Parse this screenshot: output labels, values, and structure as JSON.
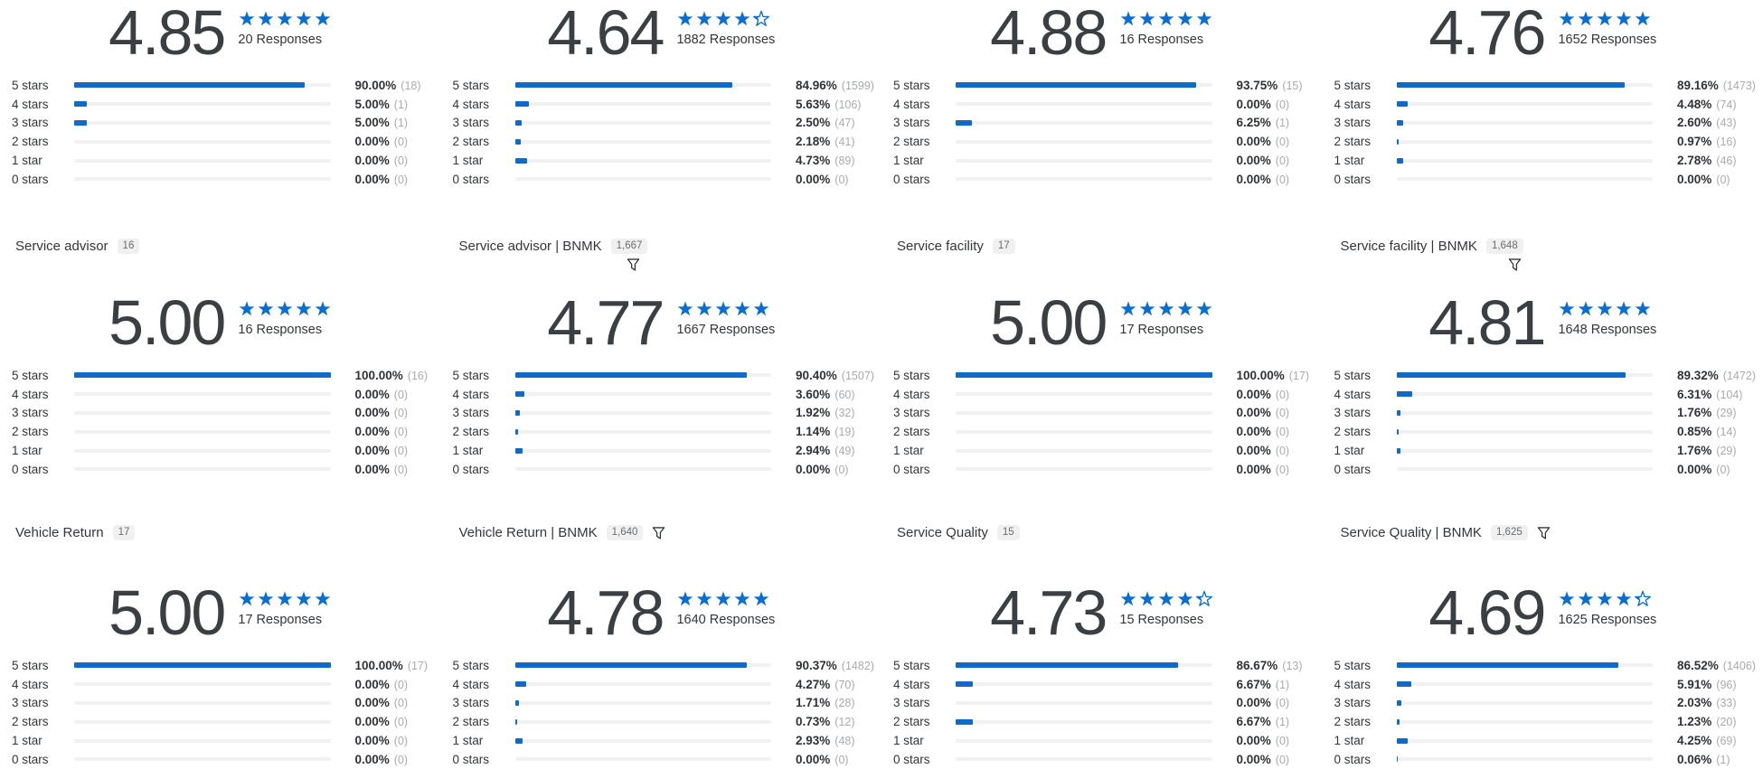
{
  "colors": {
    "accent": "#1169c8",
    "star": "#0a6ed1",
    "track": "#f1f1f3",
    "text": "#32363a",
    "muted": "#a8abae",
    "badge_bg": "#f0f0f0",
    "badge_text": "#6a6d70"
  },
  "star_row_labels": [
    "5 stars",
    "4 stars",
    "3 stars",
    "2 stars",
    "1 star",
    "0 stars"
  ],
  "sections": [
    {
      "titles": null,
      "widgets": [
        {
          "score": "4.85",
          "stars": [
            1,
            1,
            1,
            1,
            1
          ],
          "responses": "20 Responses",
          "breakdown": [
            {
              "percent": 90.0,
              "percent_label": "90.00%",
              "count_label": "(18)"
            },
            {
              "percent": 5.0,
              "percent_label": "5.00%",
              "count_label": "(1)"
            },
            {
              "percent": 5.0,
              "percent_label": "5.00%",
              "count_label": "(1)"
            },
            {
              "percent": 0.0,
              "percent_label": "0.00%",
              "count_label": "(0)"
            },
            {
              "percent": 0.0,
              "percent_label": "0.00%",
              "count_label": "(0)"
            },
            {
              "percent": 0.0,
              "percent_label": "0.00%",
              "count_label": "(0)"
            }
          ]
        },
        {
          "score": "4.64",
          "stars": [
            1,
            1,
            1,
            1,
            0.3
          ],
          "responses": "1882 Responses",
          "breakdown": [
            {
              "percent": 84.96,
              "percent_label": "84.96%",
              "count_label": "(1599)"
            },
            {
              "percent": 5.63,
              "percent_label": "5.63%",
              "count_label": "(106)"
            },
            {
              "percent": 2.5,
              "percent_label": "2.50%",
              "count_label": "(47)"
            },
            {
              "percent": 2.18,
              "percent_label": "2.18%",
              "count_label": "(41)"
            },
            {
              "percent": 4.73,
              "percent_label": "4.73%",
              "count_label": "(89)"
            },
            {
              "percent": 0.0,
              "percent_label": "0.00%",
              "count_label": "(0)"
            }
          ]
        },
        {
          "score": "4.88",
          "stars": [
            1,
            1,
            1,
            1,
            1
          ],
          "responses": "16 Responses",
          "breakdown": [
            {
              "percent": 93.75,
              "percent_label": "93.75%",
              "count_label": "(15)"
            },
            {
              "percent": 0.0,
              "percent_label": "0.00%",
              "count_label": "(0)"
            },
            {
              "percent": 6.25,
              "percent_label": "6.25%",
              "count_label": "(1)"
            },
            {
              "percent": 0.0,
              "percent_label": "0.00%",
              "count_label": "(0)"
            },
            {
              "percent": 0.0,
              "percent_label": "0.00%",
              "count_label": "(0)"
            },
            {
              "percent": 0.0,
              "percent_label": "0.00%",
              "count_label": "(0)"
            }
          ]
        },
        {
          "score": "4.76",
          "stars": [
            1,
            1,
            1,
            1,
            1
          ],
          "responses": "1652 Responses",
          "breakdown": [
            {
              "percent": 89.16,
              "percent_label": "89.16%",
              "count_label": "(1473)"
            },
            {
              "percent": 4.48,
              "percent_label": "4.48%",
              "count_label": "(74)"
            },
            {
              "percent": 2.6,
              "percent_label": "2.60%",
              "count_label": "(43)"
            },
            {
              "percent": 0.97,
              "percent_label": "0.97%",
              "count_label": "(16)"
            },
            {
              "percent": 2.78,
              "percent_label": "2.78%",
              "count_label": "(46)"
            },
            {
              "percent": 0.0,
              "percent_label": "0.00%",
              "count_label": "(0)"
            }
          ]
        }
      ]
    },
    {
      "titles": [
        {
          "label": "Service advisor",
          "badge": "16",
          "filter": "none"
        },
        {
          "label": "Service advisor | BNMK",
          "badge": "1,667",
          "filter": "below"
        },
        {
          "label": "Service facility",
          "badge": "17",
          "filter": "none"
        },
        {
          "label": "Service facility | BNMK",
          "badge": "1,648",
          "filter": "below"
        }
      ],
      "widgets": [
        {
          "score": "5.00",
          "stars": [
            1,
            1,
            1,
            1,
            1
          ],
          "responses": "16 Responses",
          "breakdown": [
            {
              "percent": 100.0,
              "percent_label": "100.00%",
              "count_label": "(16)"
            },
            {
              "percent": 0.0,
              "percent_label": "0.00%",
              "count_label": "(0)"
            },
            {
              "percent": 0.0,
              "percent_label": "0.00%",
              "count_label": "(0)"
            },
            {
              "percent": 0.0,
              "percent_label": "0.00%",
              "count_label": "(0)"
            },
            {
              "percent": 0.0,
              "percent_label": "0.00%",
              "count_label": "(0)"
            },
            {
              "percent": 0.0,
              "percent_label": "0.00%",
              "count_label": "(0)"
            }
          ]
        },
        {
          "score": "4.77",
          "stars": [
            1,
            1,
            1,
            1,
            1
          ],
          "responses": "1667 Responses",
          "breakdown": [
            {
              "percent": 90.4,
              "percent_label": "90.40%",
              "count_label": "(1507)"
            },
            {
              "percent": 3.6,
              "percent_label": "3.60%",
              "count_label": "(60)"
            },
            {
              "percent": 1.92,
              "percent_label": "1.92%",
              "count_label": "(32)"
            },
            {
              "percent": 1.14,
              "percent_label": "1.14%",
              "count_label": "(19)"
            },
            {
              "percent": 2.94,
              "percent_label": "2.94%",
              "count_label": "(49)"
            },
            {
              "percent": 0.0,
              "percent_label": "0.00%",
              "count_label": "(0)"
            }
          ]
        },
        {
          "score": "5.00",
          "stars": [
            1,
            1,
            1,
            1,
            1
          ],
          "responses": "17 Responses",
          "breakdown": [
            {
              "percent": 100.0,
              "percent_label": "100.00%",
              "count_label": "(17)"
            },
            {
              "percent": 0.0,
              "percent_label": "0.00%",
              "count_label": "(0)"
            },
            {
              "percent": 0.0,
              "percent_label": "0.00%",
              "count_label": "(0)"
            },
            {
              "percent": 0.0,
              "percent_label": "0.00%",
              "count_label": "(0)"
            },
            {
              "percent": 0.0,
              "percent_label": "0.00%",
              "count_label": "(0)"
            },
            {
              "percent": 0.0,
              "percent_label": "0.00%",
              "count_label": "(0)"
            }
          ]
        },
        {
          "score": "4.81",
          "stars": [
            1,
            1,
            1,
            1,
            1
          ],
          "responses": "1648 Responses",
          "breakdown": [
            {
              "percent": 89.32,
              "percent_label": "89.32%",
              "count_label": "(1472)"
            },
            {
              "percent": 6.31,
              "percent_label": "6.31%",
              "count_label": "(104)"
            },
            {
              "percent": 1.76,
              "percent_label": "1.76%",
              "count_label": "(29)"
            },
            {
              "percent": 0.85,
              "percent_label": "0.85%",
              "count_label": "(14)"
            },
            {
              "percent": 1.76,
              "percent_label": "1.76%",
              "count_label": "(29)"
            },
            {
              "percent": 0.0,
              "percent_label": "0.00%",
              "count_label": "(0)"
            }
          ]
        }
      ]
    },
    {
      "titles": [
        {
          "label": "Vehicle Return",
          "badge": "17",
          "filter": "none"
        },
        {
          "label": "Vehicle Return | BNMK",
          "badge": "1,640",
          "filter": "inline"
        },
        {
          "label": "Service Quality",
          "badge": "15",
          "filter": "none"
        },
        {
          "label": "Service Quality | BNMK",
          "badge": "1,625",
          "filter": "inline"
        }
      ],
      "widgets": [
        {
          "score": "5.00",
          "stars": [
            1,
            1,
            1,
            1,
            1
          ],
          "responses": "17 Responses",
          "breakdown": [
            {
              "percent": 100.0,
              "percent_label": "100.00%",
              "count_label": "(17)"
            },
            {
              "percent": 0.0,
              "percent_label": "0.00%",
              "count_label": "(0)"
            },
            {
              "percent": 0.0,
              "percent_label": "0.00%",
              "count_label": "(0)"
            },
            {
              "percent": 0.0,
              "percent_label": "0.00%",
              "count_label": "(0)"
            },
            {
              "percent": 0.0,
              "percent_label": "0.00%",
              "count_label": "(0)"
            },
            {
              "percent": 0.0,
              "percent_label": "0.00%",
              "count_label": "(0)"
            }
          ]
        },
        {
          "score": "4.78",
          "stars": [
            1,
            1,
            1,
            1,
            1
          ],
          "responses": "1640 Responses",
          "breakdown": [
            {
              "percent": 90.37,
              "percent_label": "90.37%",
              "count_label": "(1482)"
            },
            {
              "percent": 4.27,
              "percent_label": "4.27%",
              "count_label": "(70)"
            },
            {
              "percent": 1.71,
              "percent_label": "1.71%",
              "count_label": "(28)"
            },
            {
              "percent": 0.73,
              "percent_label": "0.73%",
              "count_label": "(12)"
            },
            {
              "percent": 2.93,
              "percent_label": "2.93%",
              "count_label": "(48)"
            },
            {
              "percent": 0.0,
              "percent_label": "0.00%",
              "count_label": "(0)"
            }
          ]
        },
        {
          "score": "4.73",
          "stars": [
            1,
            1,
            1,
            1,
            0.3
          ],
          "responses": "15 Responses",
          "breakdown": [
            {
              "percent": 86.67,
              "percent_label": "86.67%",
              "count_label": "(13)"
            },
            {
              "percent": 6.67,
              "percent_label": "6.67%",
              "count_label": "(1)"
            },
            {
              "percent": 0.0,
              "percent_label": "0.00%",
              "count_label": "(0)"
            },
            {
              "percent": 6.67,
              "percent_label": "6.67%",
              "count_label": "(1)"
            },
            {
              "percent": 0.0,
              "percent_label": "0.00%",
              "count_label": "(0)"
            },
            {
              "percent": 0.0,
              "percent_label": "0.00%",
              "count_label": "(0)"
            }
          ]
        },
        {
          "score": "4.69",
          "stars": [
            1,
            1,
            1,
            1,
            0.3
          ],
          "responses": "1625 Responses",
          "breakdown": [
            {
              "percent": 86.52,
              "percent_label": "86.52%",
              "count_label": "(1406)"
            },
            {
              "percent": 5.91,
              "percent_label": "5.91%",
              "count_label": "(96)"
            },
            {
              "percent": 2.03,
              "percent_label": "2.03%",
              "count_label": "(33)"
            },
            {
              "percent": 1.23,
              "percent_label": "1.23%",
              "count_label": "(20)"
            },
            {
              "percent": 4.25,
              "percent_label": "4.25%",
              "count_label": "(69)"
            },
            {
              "percent": 0.06,
              "percent_label": "0.06%",
              "count_label": "(1)"
            }
          ]
        }
      ]
    }
  ]
}
